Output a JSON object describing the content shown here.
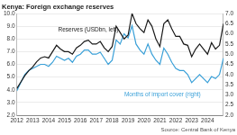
{
  "chart_data": {
    "type": "line",
    "title": "Kenya: Foreign exchange reserves",
    "source": "Source: Central Bank of Kenya",
    "categories": [
      "2012",
      null,
      null,
      null,
      "2013",
      null,
      null,
      null,
      "2014",
      null,
      null,
      null,
      "2015",
      null,
      null,
      null,
      "2016",
      null,
      null,
      null,
      "2017",
      null,
      null,
      null,
      "2018",
      null,
      null,
      null,
      "2019",
      null,
      null,
      null,
      "2020",
      null,
      null,
      null,
      "2021",
      null,
      null,
      null,
      "2022",
      null,
      null,
      null,
      "2023",
      null,
      null,
      null,
      "2024",
      null,
      null,
      null,
      null
    ],
    "series": [
      {
        "name": "Reserves (USDbn, left)",
        "color": "#1a1a1a",
        "axis": "y",
        "values": [
          4.1,
          4.6,
          5.1,
          5.5,
          5.8,
          6.2,
          6.5,
          6.6,
          6.5,
          7.0,
          7.5,
          7.2,
          7.0,
          7.0,
          6.8,
          7.3,
          7.5,
          7.8,
          7.9,
          7.6,
          7.6,
          7.8,
          7.3,
          7.0,
          7.4,
          9.0,
          8.5,
          8.0,
          8.3,
          10.0,
          9.2,
          8.8,
          8.5,
          9.5,
          9.0,
          8.0,
          7.4,
          9.2,
          9.5,
          8.8,
          8.2,
          8.2,
          7.6,
          7.5,
          6.6,
          7.2,
          7.6,
          7.2,
          6.8,
          7.7,
          7.2,
          7.5,
          9.2
        ]
      },
      {
        "name": "Months of import cover (right)",
        "color": "#3aa0d8",
        "axis": "y2",
        "values": [
          3.2,
          3.6,
          4.0,
          4.2,
          4.3,
          4.4,
          4.5,
          4.5,
          4.4,
          4.6,
          4.9,
          4.8,
          4.7,
          4.8,
          4.6,
          4.9,
          5.0,
          5.2,
          5.2,
          5.0,
          5.0,
          5.1,
          4.8,
          4.5,
          4.7,
          5.7,
          5.5,
          6.0,
          5.8,
          6.4,
          5.5,
          5.2,
          5.0,
          5.5,
          5.0,
          4.7,
          4.5,
          5.3,
          5.0,
          4.6,
          4.3,
          4.2,
          4.2,
          4.0,
          3.6,
          3.8,
          4.0,
          3.8,
          3.6,
          3.9,
          3.8,
          4.0,
          4.8
        ]
      }
    ],
    "ylim": [
      2,
      10
    ],
    "yticks": [
      {
        "value": 2,
        "label": "2.0"
      },
      {
        "value": 3,
        "label": "3.0"
      },
      {
        "value": 4,
        "label": "4.0"
      },
      {
        "value": 5,
        "label": "5.0"
      },
      {
        "value": 6,
        "label": "6.0"
      },
      {
        "value": 7,
        "label": "7.0"
      },
      {
        "value": 8,
        "label": "8.0"
      },
      {
        "value": 9,
        "label": "9.0"
      },
      {
        "value": 10,
        "label": "10.0"
      }
    ],
    "y2lim": [
      2,
      7
    ],
    "y2ticks": [
      {
        "value": 2,
        "label": "2.0"
      },
      {
        "value": 2.5,
        "label": "2.5"
      },
      {
        "value": 3,
        "label": "3.0"
      },
      {
        "value": 3.5,
        "label": "3.5"
      },
      {
        "value": 4,
        "label": "4.0"
      },
      {
        "value": 4.5,
        "label": "4.5"
      },
      {
        "value": 5,
        "label": "5.0"
      },
      {
        "value": 5.5,
        "label": "5.5"
      },
      {
        "value": 6,
        "label": "6.0"
      },
      {
        "value": 6.5,
        "label": "6.5"
      },
      {
        "value": 7,
        "label": "7.0"
      }
    ],
    "grid": true
  }
}
